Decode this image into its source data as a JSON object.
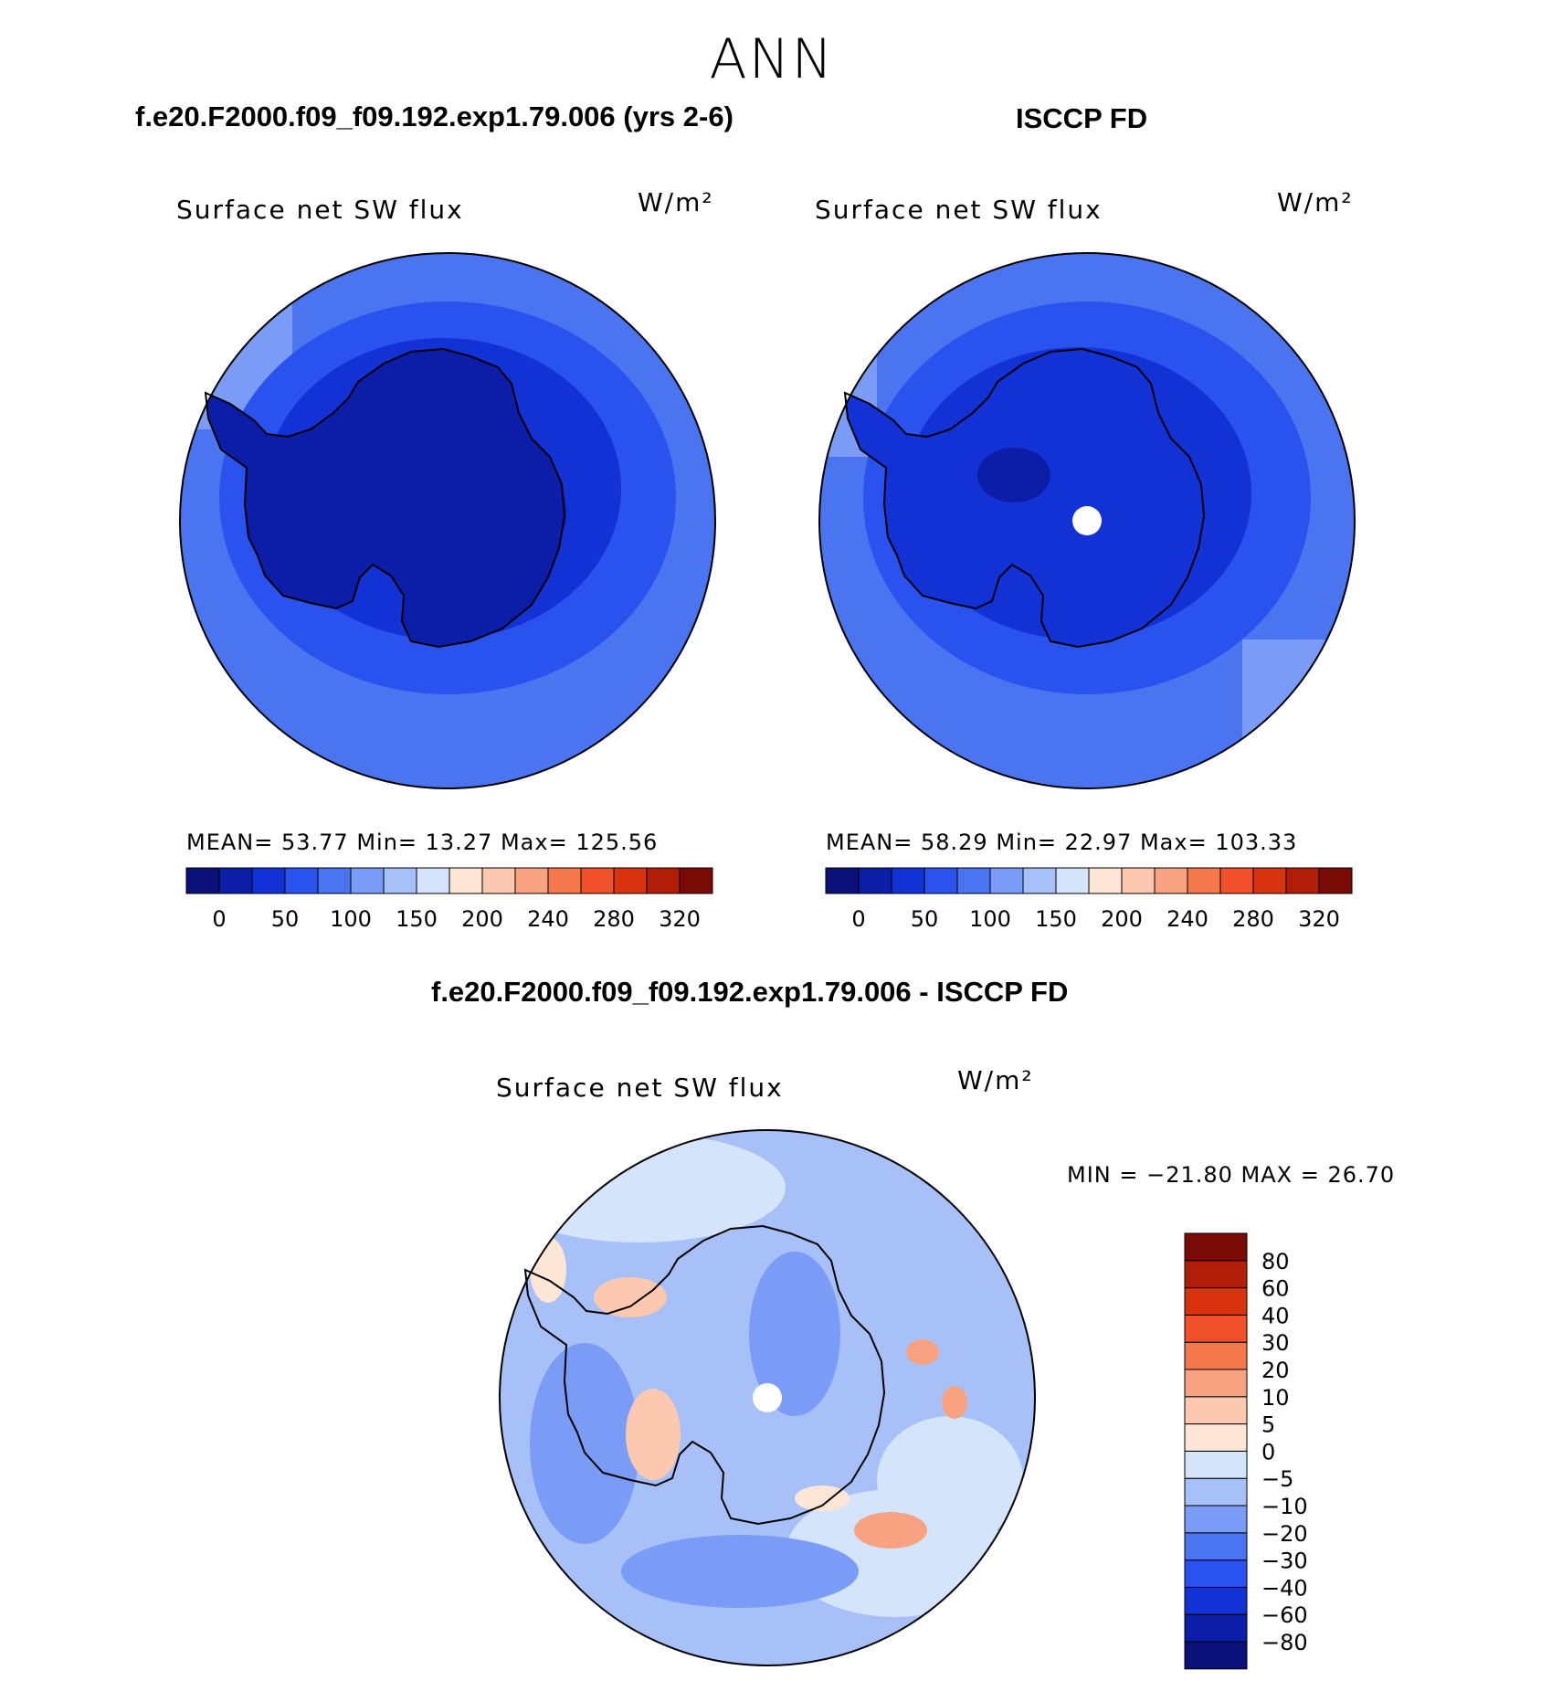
{
  "season": "ANN",
  "panels": {
    "model": {
      "title": "f.e20.F2000.f09_f09.192.exp1.79.006 (yrs 2-6)",
      "variable": "Surface net SW flux",
      "units": "W/m²",
      "stats": "MEAN=   53.77   Min=    13.27    Max=  125.56"
    },
    "obs": {
      "title": "ISCCP FD",
      "variable": "Surface net SW flux",
      "units": "W/m²",
      "stats": "MEAN=   58.29   Min=    22.97    Max= 103.33"
    },
    "diff": {
      "title": "f.e20.F2000.f09_f09.192.exp1.79.006 - ISCCP FD",
      "variable": "Surface net SW flux",
      "units": "W/m²",
      "stats": "MIN  =  −21.80  MAX  =    26.70"
    }
  },
  "colorbar": {
    "colors": [
      "#0a1078",
      "#0c1ea8",
      "#1232d6",
      "#2a52ee",
      "#4a74f0",
      "#7a9cf6",
      "#a8c0f8",
      "#d4e4fa",
      "#fde6d6",
      "#fcc8b0",
      "#f8a282",
      "#f4784c",
      "#f0502a",
      "#d8320e",
      "#b01e08",
      "#7a0a06"
    ],
    "tick_labels": [
      "0",
      "50",
      "100",
      "150",
      "200",
      "240",
      "280",
      "320"
    ]
  },
  "diff_colorbar": {
    "colors": [
      "#0a1078",
      "#0c1ea8",
      "#1232d6",
      "#2a52ee",
      "#4a74f0",
      "#7a9cf6",
      "#a8c0f8",
      "#d4e4fa",
      "#fde6d6",
      "#fcc8b0",
      "#f8a282",
      "#f4784c",
      "#f0502a",
      "#d8320e",
      "#b01e08",
      "#7a0a06"
    ],
    "tick_labels": [
      "−80",
      "−60",
      "−40",
      "−30",
      "−20",
      "−10",
      "−5",
      "0",
      "5",
      "10",
      "20",
      "30",
      "40",
      "60",
      "80"
    ]
  }
}
